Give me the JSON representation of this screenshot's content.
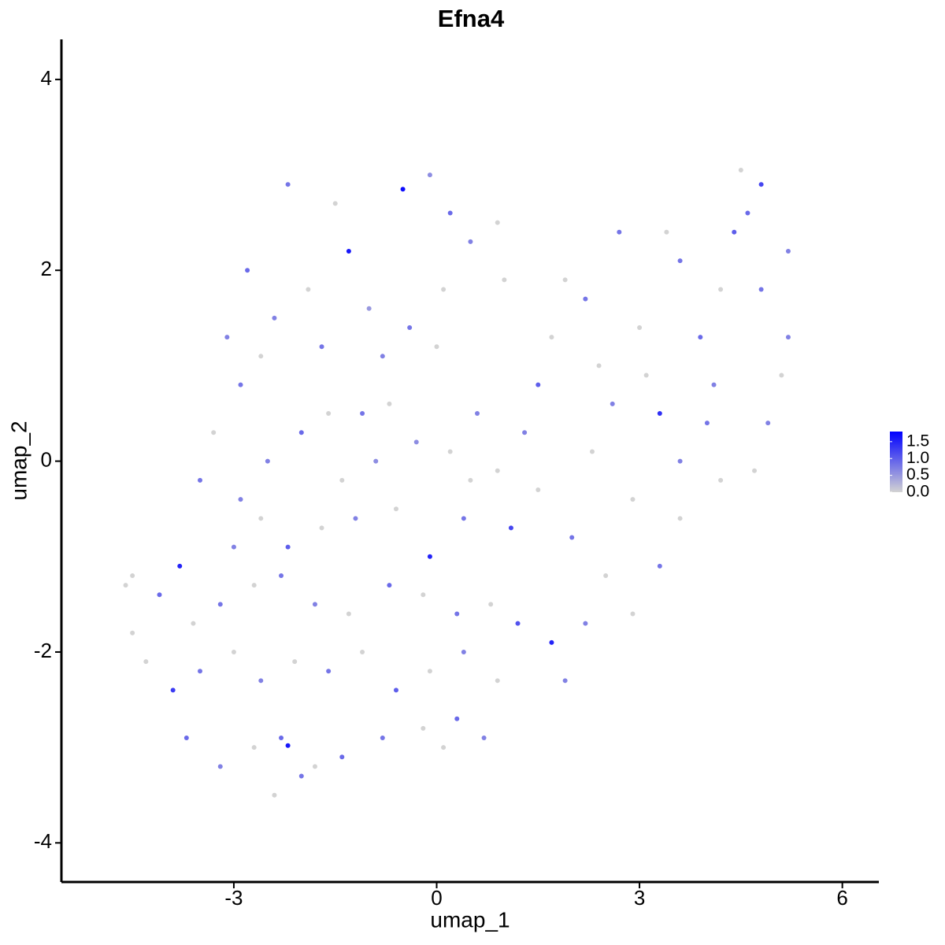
{
  "chart_data": {
    "type": "scatter",
    "title": "Efna4",
    "x_label": "umap_1",
    "y_label": "umap_2",
    "x": [
      -2.2,
      -1.5,
      -1.3,
      -0.5,
      -0.1,
      0.2,
      -2.8,
      -2.4,
      -1.9,
      -1.0,
      -0.4,
      0.1,
      0.5,
      -2.6,
      -1.7,
      -0.8,
      0,
      -3.1,
      -2.9,
      0.9,
      1.0,
      -3.3,
      -3.5,
      -2.9,
      -2.5,
      -2.0,
      -1.6,
      -1.1,
      -0.7,
      -0.3,
      0.2,
      0.6,
      0.9,
      -2.2,
      -1.7,
      -1.2,
      -0.6,
      -0.1,
      0.4,
      1.1,
      -3.0,
      -2.6,
      -1.4,
      -0.9,
      0.5,
      -4.6,
      -4.5,
      -4.1,
      -3.8,
      -3.6,
      -3.2,
      -2.7,
      -2.3,
      -1.8,
      -1.3,
      -0.7,
      -0.2,
      0.3,
      0.8,
      1.2,
      -4.3,
      -3.9,
      -3.5,
      -3.0,
      -2.6,
      -2.1,
      -1.6,
      -1.1,
      -0.6,
      -0.1,
      0.4,
      0.9,
      -3.7,
      -3.2,
      -2.7,
      -2.3,
      -2.2,
      -1.8,
      -1.4,
      -2.4,
      -2.0,
      -0.8,
      -0.2,
      0.3,
      0.7,
      0.1,
      -4.5,
      1.5,
      2.0,
      2.5,
      2.9,
      3.3,
      3.6,
      2.2,
      1.7,
      1.9,
      2.3,
      2.6,
      3.3,
      3.6,
      4.0,
      4.2,
      4.7,
      4.9,
      5.1,
      5.2,
      4.8,
      4.4,
      4.6,
      4.8,
      4.5,
      5.2,
      3.4,
      3.6,
      3.0,
      2.7,
      2.2,
      1.7,
      1.5,
      1.9,
      2.4,
      3.9,
      4.2,
      1.3,
      2.9,
      4.1,
      3.1
    ],
    "y": [
      2.9,
      2.7,
      2.2,
      2.85,
      3.0,
      2.6,
      2.0,
      1.5,
      1.8,
      1.6,
      1.4,
      1.8,
      2.3,
      1.1,
      1.2,
      1.1,
      1.2,
      1.3,
      0.8,
      2.5,
      1.9,
      0.3,
      -0.2,
      -0.4,
      0.0,
      0.3,
      0.5,
      0.5,
      0.6,
      0.2,
      0.1,
      0.5,
      -0.1,
      -0.9,
      -0.7,
      -0.6,
      -0.5,
      -1.0,
      -0.6,
      -0.7,
      -0.9,
      -0.6,
      -0.2,
      0.0,
      -0.2,
      -1.3,
      -1.2,
      -1.4,
      -1.1,
      -1.7,
      -1.5,
      -1.3,
      -1.2,
      -1.5,
      -1.6,
      -1.3,
      -1.4,
      -1.6,
      -1.5,
      -1.7,
      -2.1,
      -2.4,
      -2.2,
      -2.0,
      -2.3,
      -2.1,
      -2.2,
      -2.0,
      -2.4,
      -2.2,
      -2.0,
      -2.3,
      -2.9,
      -3.2,
      -3.0,
      -2.9,
      -2.98,
      -3.2,
      -3.1,
      -3.5,
      -3.3,
      -2.9,
      -2.8,
      -2.7,
      -2.9,
      -3.0,
      -1.8,
      -0.3,
      -0.8,
      -1.2,
      -1.6,
      -1.1,
      -0.6,
      -1.7,
      -1.9,
      -2.3,
      0.1,
      0.6,
      0.5,
      0.0,
      0.4,
      -0.2,
      -0.1,
      0.4,
      0.9,
      1.3,
      1.8,
      2.4,
      2.6,
      2.9,
      3.05,
      2.2,
      2.4,
      2.1,
      1.4,
      2.4,
      1.7,
      1.3,
      0.8,
      1.9,
      1.0,
      1.3,
      1.8,
      0.3,
      -0.4,
      0.8,
      0.9
    ],
    "values": [
      0.8,
      0,
      1.6,
      1.7,
      0.6,
      0.9,
      0.9,
      0.7,
      0,
      0.5,
      0.8,
      0,
      0.7,
      0,
      0.8,
      0.7,
      0,
      0.7,
      0.8,
      0,
      0,
      0,
      0.8,
      0.7,
      0.7,
      0.9,
      0,
      0.8,
      0,
      0.6,
      0,
      0.7,
      0,
      1.0,
      0,
      0.7,
      0,
      1.5,
      0.8,
      1.2,
      0.7,
      0,
      0,
      0.6,
      0,
      0,
      0,
      0.9,
      1.5,
      0,
      0.8,
      0,
      0.8,
      0.7,
      0,
      0.9,
      0,
      0.8,
      0,
      1.1,
      0,
      1.3,
      0.8,
      0,
      0.7,
      0,
      0.8,
      0,
      1.0,
      0,
      0.7,
      0,
      0.9,
      0.7,
      0,
      0.9,
      1.6,
      0,
      0.9,
      0,
      0.8,
      0.8,
      0,
      0.9,
      0.7,
      0,
      0,
      0,
      0.8,
      0,
      0,
      0.8,
      0,
      0.7,
      1.5,
      0.7,
      0,
      0.7,
      1.4,
      0.7,
      0.8,
      0,
      0,
      0.7,
      0,
      0.7,
      0.8,
      1.0,
      0.9,
      1.2,
      0,
      0.7,
      0,
      0.8,
      0,
      0.8,
      0.8,
      0,
      1.0,
      0,
      0,
      0.9,
      0,
      0.7,
      0,
      0.7,
      0
    ],
    "xlim": [
      -5.55,
      6.54
    ],
    "ylim": [
      -4.41,
      4.42
    ],
    "xticks": [
      -3,
      0,
      3,
      6
    ],
    "yticks": [
      -4,
      -2,
      0,
      2,
      4
    ],
    "colorscale": {
      "low": "#d3d3d3",
      "high": "#0000ff",
      "lim": [
        0,
        1.8
      ],
      "ticks": [
        {
          "value": 0,
          "label": "0.0"
        },
        0.5,
        {
          "value": 1,
          "label": "1.0"
        },
        1.5
      ]
    }
  }
}
